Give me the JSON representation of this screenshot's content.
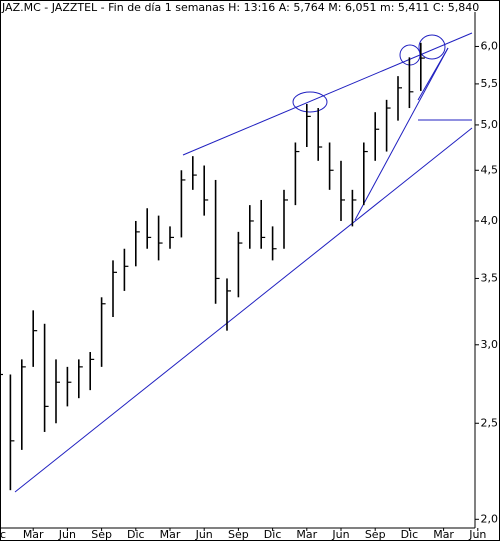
{
  "chart_data": {
    "type": "hlc-bar",
    "title": "JAZ.MC - JAZZTEL - Fin de día 1 semanas H: 13:16  A: 5,764  M: 6,051  m: 5,411  C: 5,840",
    "categories": [
      "c",
      null,
      null,
      "Mar",
      null,
      null,
      "Jun",
      null,
      null,
      "Sep",
      null,
      null,
      "Dic",
      null,
      null,
      "Mar",
      null,
      null,
      "Jun",
      null,
      null,
      "Sep",
      null,
      null,
      "Dic",
      null,
      null,
      "Mar",
      null,
      null,
      "Jun",
      null,
      null,
      "Sep",
      null,
      null,
      "Dic",
      null,
      null,
      "Mar",
      null,
      null,
      "Jun"
    ],
    "high": [
      2.95,
      2.8,
      2.9,
      3.25,
      3.15,
      2.9,
      2.85,
      2.9,
      2.95,
      3.35,
      3.65,
      3.75,
      4.0,
      4.12,
      4.05,
      3.95,
      4.5,
      4.65,
      4.55,
      4.4,
      3.5,
      3.9,
      4.15,
      4.2,
      3.95,
      4.3,
      4.8,
      5.25,
      5.2,
      4.8,
      4.6,
      4.3,
      4.8,
      5.15,
      5.3,
      5.6,
      5.85,
      6.051,
      null,
      null,
      null,
      null,
      null
    ],
    "low": [
      2.55,
      2.14,
      2.35,
      2.85,
      2.45,
      2.5,
      2.6,
      2.65,
      2.7,
      2.85,
      3.2,
      3.4,
      3.6,
      3.75,
      3.65,
      3.75,
      3.85,
      4.3,
      4.05,
      3.3,
      3.1,
      3.35,
      3.75,
      3.75,
      3.65,
      3.75,
      4.15,
      4.75,
      4.6,
      4.3,
      4.0,
      3.95,
      4.15,
      4.6,
      4.7,
      5.05,
      5.2,
      5.411,
      null,
      null,
      null,
      null,
      null
    ],
    "close": [
      2.8,
      2.4,
      2.85,
      3.1,
      2.6,
      2.75,
      2.75,
      2.85,
      2.9,
      3.3,
      3.55,
      3.6,
      3.9,
      3.85,
      3.8,
      3.85,
      4.4,
      4.45,
      4.2,
      3.5,
      3.4,
      3.8,
      4.0,
      3.85,
      3.75,
      4.2,
      4.7,
      5.1,
      4.75,
      4.5,
      4.2,
      4.2,
      4.7,
      4.95,
      5.2,
      5.45,
      5.4,
      5.84,
      null,
      null,
      null,
      null,
      null
    ],
    "color": "#000000",
    "log_scale": true,
    "ylim": [
      1.96,
      6.5
    ],
    "yticks": [
      {
        "value": 2,
        "label": "2,0"
      },
      {
        "value": 2.5,
        "label": "2,5"
      },
      {
        "value": 3,
        "label": "3,0"
      },
      {
        "value": 3.5,
        "label": "3,5"
      },
      {
        "value": 4,
        "label": "4,0"
      },
      {
        "value": 4.5,
        "label": "4,5"
      },
      {
        "value": 5,
        "label": "5,0"
      },
      {
        "value": 5.5,
        "label": "5,5"
      },
      {
        "value": 6,
        "label": "6,0"
      }
    ],
    "grid": false
  }
}
